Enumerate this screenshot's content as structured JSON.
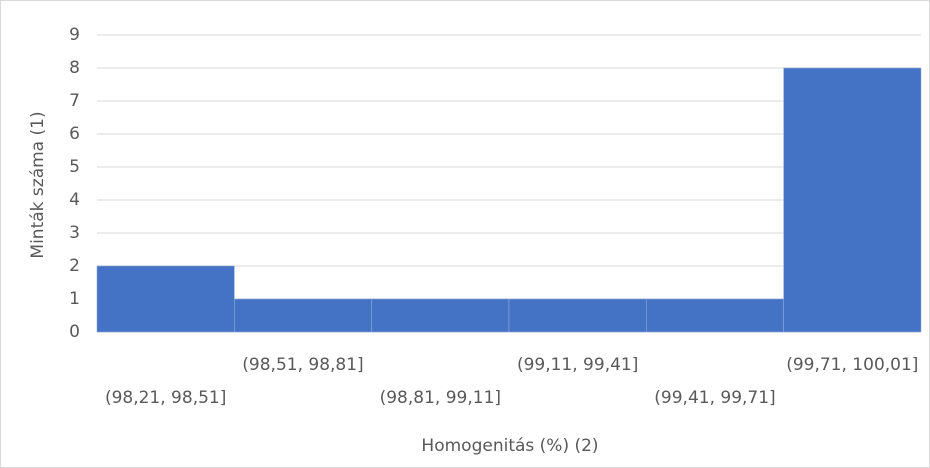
{
  "chart_data": {
    "type": "bar",
    "x_label": "Homogenitás (%) (2)",
    "y_label": "Minták száma (1)",
    "categories": [
      "(98,21, 98,51]",
      "(98,51, 98,81]",
      "(98,81, 99,11]",
      "(99,11, 99,41]",
      "(99,41, 99,71]",
      "(99,71, 100,01]"
    ],
    "values": [
      2,
      1,
      1,
      1,
      1,
      8
    ],
    "color": "#4472c4",
    "ylim": [
      0,
      9
    ],
    "yticks": [
      0,
      1,
      2,
      3,
      4,
      5,
      6,
      7,
      8,
      9
    ],
    "grid": true
  }
}
